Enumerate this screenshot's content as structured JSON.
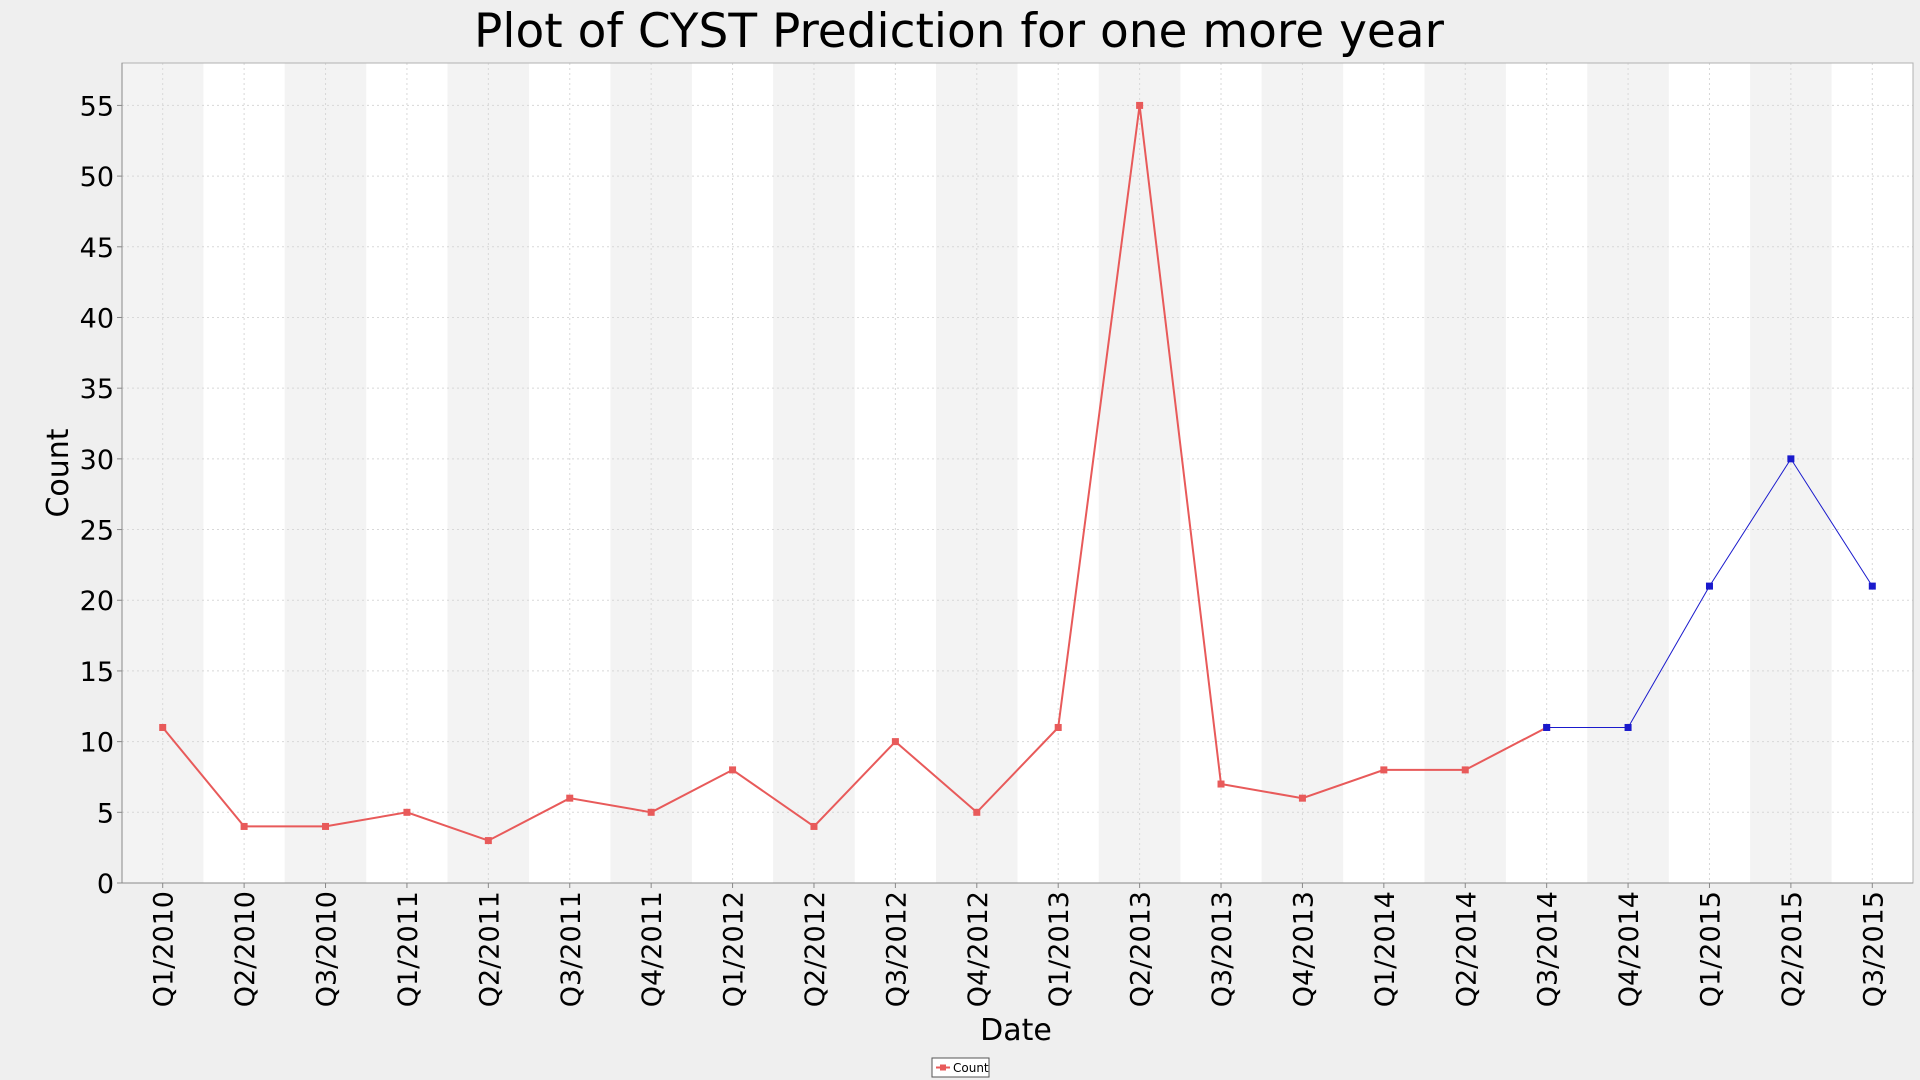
{
  "chart_data": {
    "type": "line",
    "title": "Plot of CYST Prediction for one more year",
    "xlabel": "Date",
    "ylabel": "Count",
    "ylim": [
      0,
      58
    ],
    "yticks": [
      0,
      5,
      10,
      15,
      20,
      25,
      30,
      35,
      40,
      45,
      50,
      55
    ],
    "grid": true,
    "legend": "bottom-center",
    "categories": [
      "Q1/2010",
      "Q2/2010",
      "Q3/2010",
      "Q1/2011",
      "Q2/2011",
      "Q3/2011",
      "Q4/2011",
      "Q1/2012",
      "Q2/2012",
      "Q3/2012",
      "Q4/2012",
      "Q1/2013",
      "Q2/2013",
      "Q3/2013",
      "Q4/2013",
      "Q1/2014",
      "Q2/2014",
      "Q3/2014",
      "Q4/2014",
      "Q1/2015",
      "Q2/2015",
      "Q3/2015"
    ],
    "series": [
      {
        "name": "Count",
        "color": "#e85a5a",
        "values": [
          11,
          4,
          4,
          5,
          3,
          6,
          5,
          8,
          4,
          10,
          5,
          11,
          55,
          7,
          6,
          8,
          8,
          11,
          null,
          null,
          null,
          null
        ]
      },
      {
        "color": "#1a1acc",
        "values": [
          null,
          null,
          null,
          null,
          null,
          null,
          null,
          null,
          null,
          null,
          null,
          null,
          null,
          null,
          null,
          null,
          null,
          11,
          11,
          21,
          30,
          21
        ]
      }
    ]
  }
}
